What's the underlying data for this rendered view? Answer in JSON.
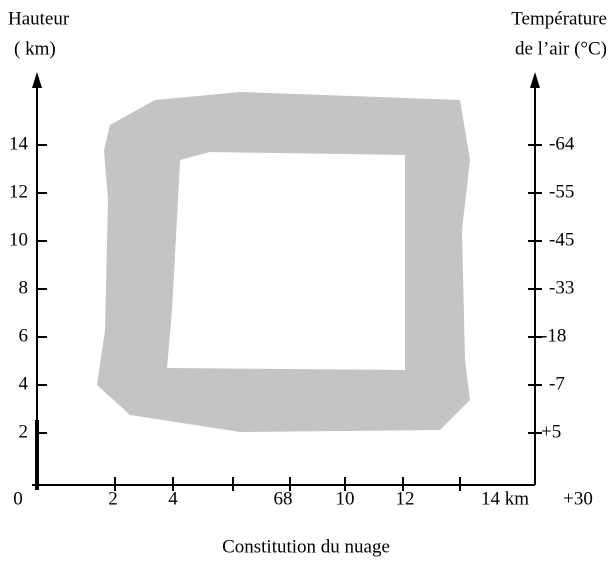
{
  "left_axis": {
    "title": [
      "Hauteur",
      "( km)"
    ],
    "ticks": [
      "14",
      "12",
      "10",
      "8",
      "6",
      "4",
      "2"
    ]
  },
  "right_axis": {
    "title": [
      "Température",
      "de l’air (°C)"
    ],
    "ticks": [
      "-64",
      "-55",
      "-45",
      "-33",
      "-18",
      "-7",
      "+5"
    ],
    "bottom": "+30"
  },
  "x_axis": {
    "ticks": [
      "0",
      "2",
      "4",
      "68",
      "10",
      "12",
      "14 km"
    ],
    "title": "Constitution du nuage"
  }
}
